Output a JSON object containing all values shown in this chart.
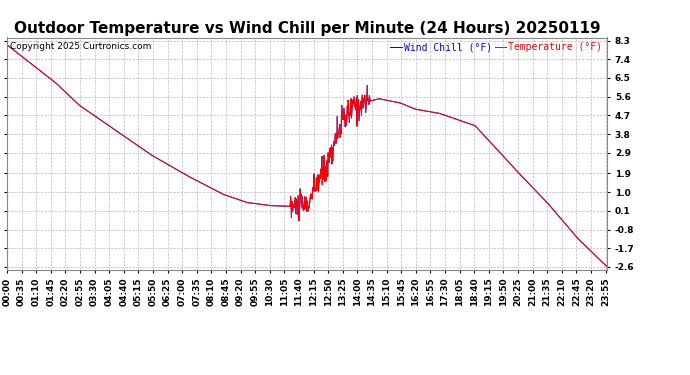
{
  "title": "Outdoor Temperature vs Wind Chill per Minute (24 Hours) 20250119",
  "copyright": "Copyright 2025 Curtronics.com",
  "legend_wind_chill": "Wind Chill (°F)",
  "legend_temperature": "Temperature (°F)",
  "wind_chill_color": "blue",
  "temperature_color": "red",
  "background_color": "#ffffff",
  "grid_color": "#bbbbbb",
  "yticks": [
    8.3,
    7.4,
    6.5,
    5.6,
    4.7,
    3.8,
    2.9,
    1.9,
    1.0,
    0.1,
    -0.8,
    -1.7,
    -2.6
  ],
  "ylim_min": -2.6,
  "ylim_max": 8.3,
  "title_fontsize": 11,
  "tick_fontsize": 6.5,
  "copyright_fontsize": 6.5,
  "legend_fontsize": 7,
  "ctrl_t": [
    0.0,
    0.04,
    0.08,
    0.12,
    0.18,
    0.24,
    0.3,
    0.36,
    0.4,
    0.44,
    0.47,
    0.5,
    0.535,
    0.555,
    0.58,
    0.62,
    0.655,
    0.68,
    0.72,
    0.78,
    0.85,
    0.9,
    0.95,
    1.0
  ],
  "ctrl_v": [
    8.1,
    7.2,
    6.3,
    5.2,
    4.0,
    2.8,
    1.8,
    0.9,
    0.5,
    0.35,
    0.32,
    0.32,
    2.5,
    4.2,
    5.2,
    5.5,
    5.3,
    5.0,
    4.8,
    4.2,
    2.0,
    0.5,
    -1.2,
    -2.6
  ],
  "noise_seed": 10,
  "noise_regions": [
    [
      680,
      870
    ]
  ],
  "noise_scale": 0.35
}
